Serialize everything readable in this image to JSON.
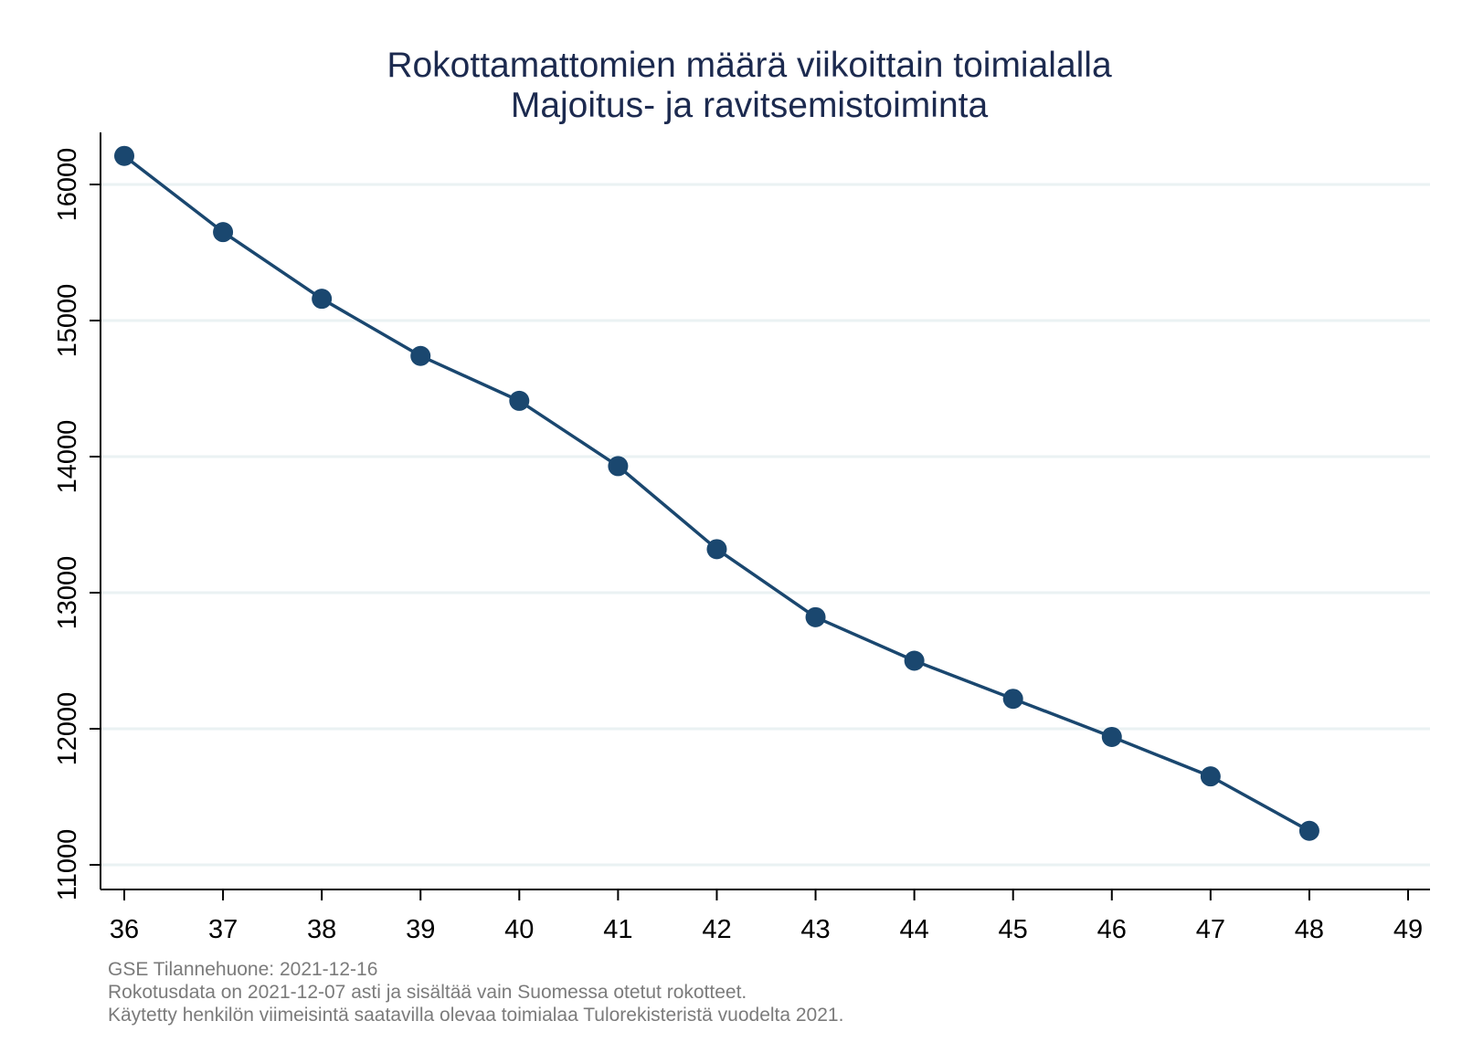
{
  "chart_data": {
    "type": "line",
    "title": "Rokottamattomien määrä viikoittain toimialalla",
    "subtitle": "Majoitus- ja ravitsemistoiminta",
    "xlabel": "",
    "ylabel": "",
    "x": [
      36,
      37,
      38,
      39,
      40,
      41,
      42,
      43,
      44,
      45,
      46,
      47,
      48
    ],
    "series": [
      {
        "values": [
          16210,
          15650,
          15160,
          14740,
          14410,
          13930,
          13320,
          12820,
          12500,
          12220,
          11940,
          11650,
          11250
        ]
      }
    ],
    "xlim": [
      36,
      49
    ],
    "ylim": [
      11000,
      16000
    ],
    "xticks": [
      "36",
      "37",
      "38",
      "39",
      "40",
      "41",
      "42",
      "43",
      "44",
      "45",
      "46",
      "47",
      "48",
      "49"
    ],
    "yticks": [
      "11000",
      "12000",
      "13000",
      "14000",
      "15000",
      "16000"
    ],
    "grid": "horizontal",
    "line_color": "#1a476f",
    "notes": [
      "GSE Tilannehuone: 2021-12-16",
      "Rokotusdata on 2021-12-07 asti ja sisältää vain Suomessa otetut rokotteet.",
      "Käytetty henkilön viimeisintä saatavilla olevaa toimialaa Tulorekisteristä vuodelta 2021."
    ]
  }
}
